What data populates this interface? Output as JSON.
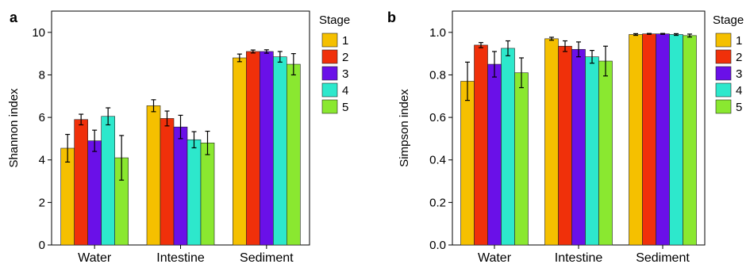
{
  "chart_data": [
    {
      "type": "bar",
      "panel": "a",
      "categories": [
        "Water",
        "Intestine",
        "Sediment"
      ],
      "ylabel": "Shannon index",
      "ylim": [
        0,
        11
      ],
      "yticks": [
        0,
        2,
        4,
        6,
        8,
        10
      ],
      "legend_title": "Stage",
      "legend_position": "right",
      "series": [
        {
          "name": "1",
          "color": "#f5c000",
          "values": [
            4.55,
            6.55,
            8.8
          ],
          "errors": [
            0.65,
            0.28,
            0.18
          ]
        },
        {
          "name": "2",
          "color": "#f0300a",
          "values": [
            5.9,
            5.95,
            9.1
          ],
          "errors": [
            0.25,
            0.35,
            0.07
          ]
        },
        {
          "name": "3",
          "color": "#6a10e8",
          "values": [
            4.9,
            5.55,
            9.1
          ],
          "errors": [
            0.5,
            0.55,
            0.08
          ]
        },
        {
          "name": "4",
          "color": "#2de8cc",
          "values": [
            6.05,
            4.95,
            8.85
          ],
          "errors": [
            0.4,
            0.38,
            0.25
          ]
        },
        {
          "name": "5",
          "color": "#8ae830",
          "values": [
            4.1,
            4.8,
            8.5
          ],
          "errors": [
            1.05,
            0.55,
            0.5
          ]
        }
      ]
    },
    {
      "type": "bar",
      "panel": "b",
      "categories": [
        "Water",
        "Intestine",
        "Sediment"
      ],
      "ylabel": "Simpson index",
      "ylim": [
        0,
        1.1
      ],
      "yticks": [
        "0.0",
        "0.2",
        "0.4",
        "0.6",
        "0.8",
        "1.0"
      ],
      "legend_title": "Stage",
      "legend_position": "right",
      "series": [
        {
          "name": "1",
          "color": "#f5c000",
          "values": [
            0.77,
            0.97,
            0.99
          ],
          "errors": [
            0.09,
            0.007,
            0.004
          ]
        },
        {
          "name": "2",
          "color": "#f0300a",
          "values": [
            0.94,
            0.935,
            0.993
          ],
          "errors": [
            0.012,
            0.025,
            0.002
          ]
        },
        {
          "name": "3",
          "color": "#6a10e8",
          "values": [
            0.85,
            0.92,
            0.993
          ],
          "errors": [
            0.06,
            0.035,
            0.002
          ]
        },
        {
          "name": "4",
          "color": "#2de8cc",
          "values": [
            0.925,
            0.885,
            0.99
          ],
          "errors": [
            0.035,
            0.03,
            0.004
          ]
        },
        {
          "name": "5",
          "color": "#8ae830",
          "values": [
            0.81,
            0.865,
            0.985
          ],
          "errors": [
            0.07,
            0.07,
            0.007
          ]
        }
      ]
    }
  ]
}
